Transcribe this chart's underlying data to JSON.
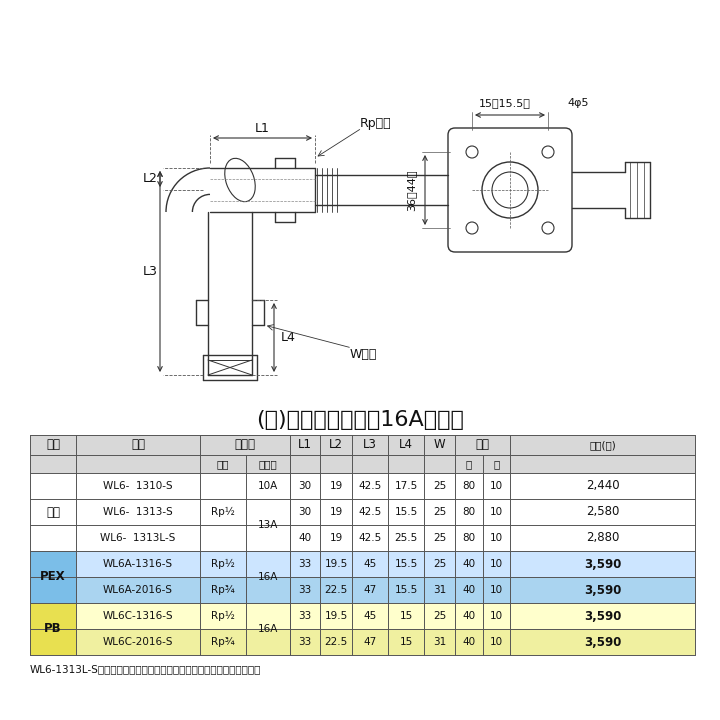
{
  "title_note": "(　)内寸法は呼び径16Aです。",
  "bg_color": "#ffffff",
  "border_color": "#555555",
  "header_bg": "#d8d8d8",
  "table_data": [
    {
      "tekiyo": "",
      "hinban": "WL6-  1310-S",
      "neji": "",
      "jushikan": "10A",
      "L1": "30",
      "L2": "19",
      "L3": "42.5",
      "L4": "17.5",
      "W": "25",
      "dai": "80",
      "sho": "10",
      "kakaku": "2,440",
      "bg": "#ffffff",
      "price_bold": false
    },
    {
      "tekiyo": "共用",
      "hinban": "WL6-  1313-S",
      "neji": "Rp½",
      "jushikan": "",
      "L1": "30",
      "L2": "19",
      "L3": "42.5",
      "L4": "15.5",
      "W": "25",
      "dai": "80",
      "sho": "10",
      "kakaku": "2,580",
      "bg": "#ffffff",
      "price_bold": false
    },
    {
      "tekiyo": "",
      "hinban": "WL6-  1313L-S",
      "neji": "",
      "jushikan": "13A",
      "L1": "40",
      "L2": "19",
      "L3": "42.5",
      "L4": "25.5",
      "W": "25",
      "dai": "80",
      "sho": "10",
      "kakaku": "2,880",
      "bg": "#ffffff",
      "price_bold": false
    },
    {
      "tekiyo": "PEX",
      "hinban": "WL6A-1316-S",
      "neji": "Rp½",
      "jushikan": "",
      "L1": "33",
      "L2": "19.5",
      "L3": "45",
      "L4": "15.5",
      "W": "25",
      "dai": "40",
      "sho": "10",
      "kakaku": "3,590",
      "bg": "#cce5ff",
      "price_bold": true
    },
    {
      "tekiyo": "",
      "hinban": "WL6A-2016-S",
      "neji": "Rp¾",
      "jushikan": "16A",
      "L1": "33",
      "L2": "22.5",
      "L3": "47",
      "L4": "15.5",
      "W": "31",
      "dai": "40",
      "sho": "10",
      "kakaku": "3,590",
      "bg": "#aad4f0",
      "price_bold": true
    },
    {
      "tekiyo": "PB",
      "hinban": "WL6C-1316-S",
      "neji": "Rp½",
      "jushikan": "",
      "L1": "33",
      "L2": "19.5",
      "L3": "45",
      "L4": "15",
      "W": "25",
      "dai": "40",
      "sho": "10",
      "kakaku": "3,590",
      "bg": "#ffffcc",
      "price_bold": true
    },
    {
      "tekiyo": "",
      "hinban": "WL6C-2016-S",
      "neji": "Rp¾",
      "jushikan": "16A",
      "L1": "33",
      "L2": "22.5",
      "L3": "47",
      "L4": "15",
      "W": "31",
      "dai": "40",
      "sho": "10",
      "kakaku": "3,590",
      "bg": "#f0f0a0",
      "price_bold": true
    }
  ],
  "footnote": "WL6-1313L-Sは首長になっており、持出しソケットが不要になります。",
  "tekiyo_pex_bg": "#9ec8e8",
  "tekiyo_pb_bg": "#e8e860",
  "diagram": {
    "lc": "#333333",
    "lw": 1.0
  }
}
